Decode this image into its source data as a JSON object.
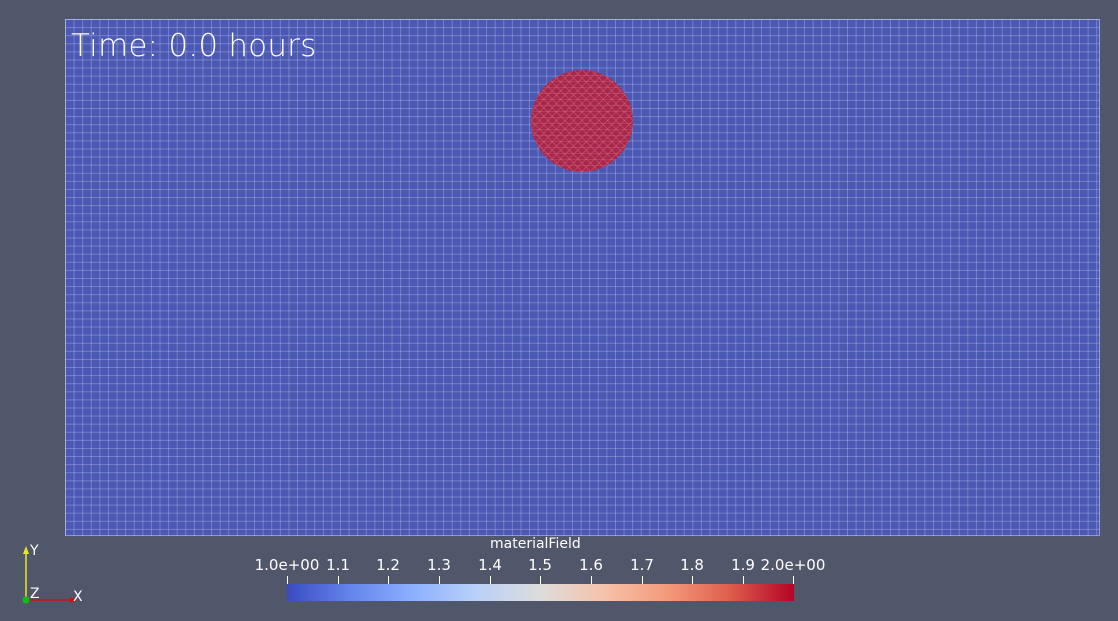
{
  "viewport": {
    "time_label": "Time: 0.0 hours"
  },
  "colorbar": {
    "title": "materialField",
    "min": 1.0,
    "max": 2.0,
    "tick_labels": [
      "1.0e+00",
      "1.1",
      "1.2",
      "1.3",
      "1.4",
      "1.5",
      "1.6",
      "1.7",
      "1.8",
      "1.9",
      "2.0e+00"
    ],
    "colormap": "cool-to-warm",
    "colors": [
      "#3b4cc0",
      "#dddcdc",
      "#b40426"
    ]
  },
  "mesh": {
    "field_value_background": 1.0,
    "field_value_inclusion": 2.0,
    "background_color": "#4b58b4",
    "inclusion_color": "#a8274b"
  },
  "axes": {
    "x_label": "X",
    "y_label": "Y",
    "z_label": "Z",
    "colors": {
      "x": "#d01010",
      "y": "#e8e820",
      "z": "#10c010"
    }
  }
}
